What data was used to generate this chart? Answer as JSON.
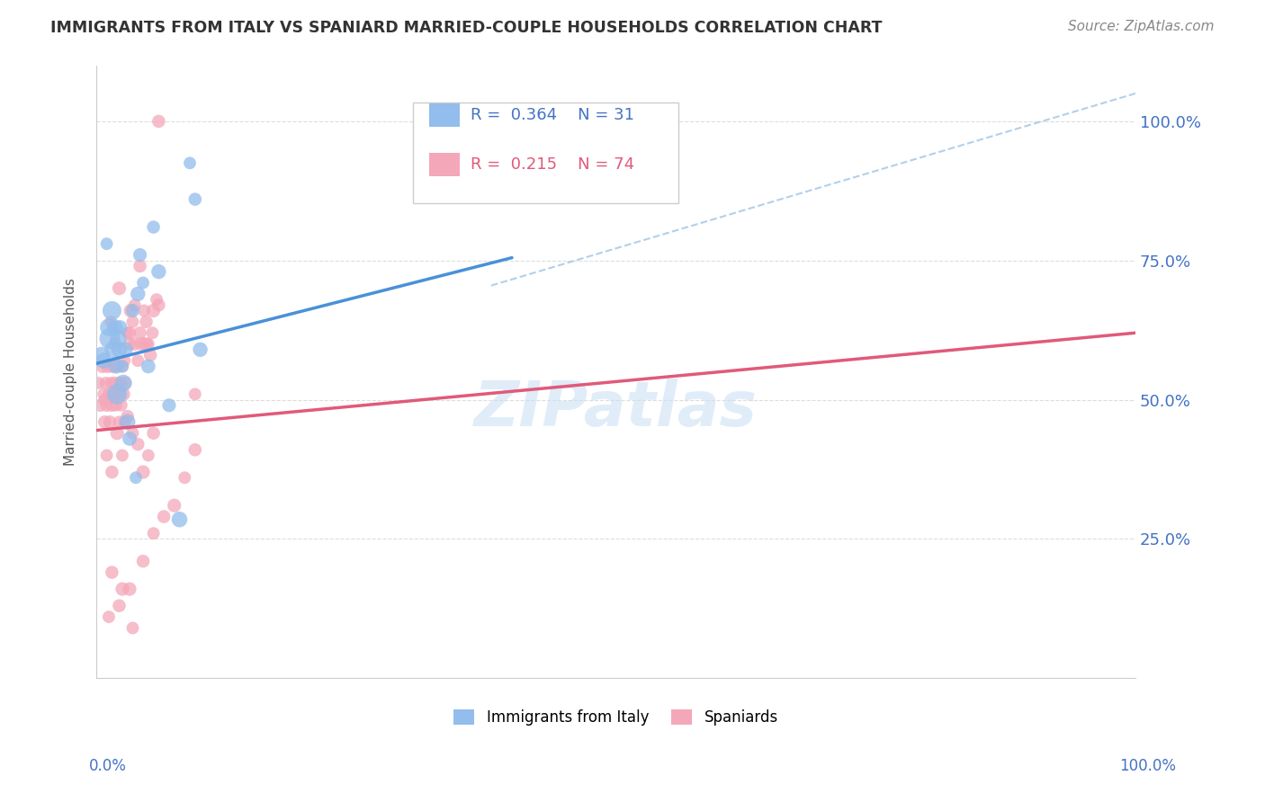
{
  "title": "IMMIGRANTS FROM ITALY VS SPANIARD MARRIED-COUPLE HOUSEHOLDS CORRELATION CHART",
  "source": "Source: ZipAtlas.com",
  "ylabel": "Married-couple Households",
  "legend_italy": "Immigrants from Italy",
  "legend_spaniards": "Spaniards",
  "R_italy": 0.364,
  "N_italy": 31,
  "R_spaniards": 0.215,
  "N_spaniards": 74,
  "ytick_labels": [
    "25.0%",
    "50.0%",
    "75.0%",
    "100.0%"
  ],
  "ytick_values": [
    0.25,
    0.5,
    0.75,
    1.0
  ],
  "color_italy": "#92BDEC",
  "color_spaniards": "#F4A7B9",
  "color_italy_line": "#4A90D9",
  "color_spaniards_line": "#E05A7A",
  "color_dashed": "#AACBE8",
  "watermark": "ZIPatlas",
  "xlim": [
    0.0,
    1.0
  ],
  "ylim": [
    0.0,
    1.1
  ],
  "italy_x": [
    0.005,
    0.007,
    0.01,
    0.012,
    0.013,
    0.015,
    0.016,
    0.018,
    0.019,
    0.02,
    0.021,
    0.022,
    0.023,
    0.025,
    0.026,
    0.028,
    0.03,
    0.032,
    0.035,
    0.038,
    0.04,
    0.042,
    0.045,
    0.05,
    0.055,
    0.06,
    0.07,
    0.08,
    0.09,
    0.095,
    0.1
  ],
  "italy_y": [
    0.58,
    0.57,
    0.78,
    0.63,
    0.61,
    0.66,
    0.59,
    0.63,
    0.56,
    0.51,
    0.61,
    0.59,
    0.63,
    0.56,
    0.53,
    0.59,
    0.46,
    0.43,
    0.66,
    0.36,
    0.69,
    0.76,
    0.71,
    0.56,
    0.81,
    0.73,
    0.49,
    0.285,
    0.925,
    0.86,
    0.59
  ],
  "italy_sizes": [
    180,
    160,
    100,
    200,
    280,
    230,
    180,
    160,
    140,
    260,
    180,
    160,
    130,
    100,
    180,
    140,
    160,
    130,
    120,
    100,
    140,
    120,
    100,
    130,
    110,
    140,
    120,
    160,
    100,
    110,
    140
  ],
  "spaniards_x": [
    0.002,
    0.004,
    0.006,
    0.007,
    0.008,
    0.009,
    0.01,
    0.011,
    0.012,
    0.013,
    0.014,
    0.015,
    0.016,
    0.017,
    0.018,
    0.019,
    0.02,
    0.021,
    0.022,
    0.023,
    0.024,
    0.025,
    0.026,
    0.027,
    0.028,
    0.03,
    0.032,
    0.033,
    0.035,
    0.037,
    0.04,
    0.042,
    0.044,
    0.046,
    0.048,
    0.05,
    0.052,
    0.055,
    0.058,
    0.06,
    0.014,
    0.018,
    0.022,
    0.027,
    0.032,
    0.037,
    0.042,
    0.048,
    0.054,
    0.06,
    0.01,
    0.015,
    0.02,
    0.025,
    0.03,
    0.035,
    0.04,
    0.045,
    0.05,
    0.055,
    0.008,
    0.015,
    0.025,
    0.035,
    0.045,
    0.055,
    0.065,
    0.075,
    0.085,
    0.095,
    0.012,
    0.022,
    0.032,
    0.095
  ],
  "spaniards_y": [
    0.53,
    0.49,
    0.56,
    0.51,
    0.46,
    0.53,
    0.49,
    0.56,
    0.51,
    0.46,
    0.53,
    0.49,
    0.56,
    0.51,
    0.53,
    0.49,
    0.56,
    0.51,
    0.46,
    0.53,
    0.49,
    0.56,
    0.51,
    0.46,
    0.53,
    0.62,
    0.6,
    0.66,
    0.64,
    0.6,
    0.57,
    0.62,
    0.6,
    0.66,
    0.64,
    0.6,
    0.58,
    0.66,
    0.68,
    1.0,
    0.64,
    0.6,
    0.7,
    0.57,
    0.62,
    0.67,
    0.74,
    0.6,
    0.62,
    0.67,
    0.4,
    0.37,
    0.44,
    0.4,
    0.47,
    0.44,
    0.42,
    0.37,
    0.4,
    0.44,
    0.5,
    0.19,
    0.16,
    0.09,
    0.21,
    0.26,
    0.29,
    0.31,
    0.36,
    0.41,
    0.11,
    0.13,
    0.16,
    0.51
  ],
  "spaniards_sizes": [
    100,
    110,
    120,
    100,
    110,
    100,
    110,
    120,
    100,
    110,
    100,
    110,
    120,
    100,
    110,
    100,
    110,
    120,
    100,
    110,
    100,
    110,
    120,
    100,
    110,
    100,
    110,
    120,
    100,
    110,
    100,
    110,
    120,
    100,
    110,
    100,
    110,
    120,
    100,
    110,
    100,
    110,
    120,
    100,
    110,
    100,
    110,
    120,
    100,
    110,
    100,
    110,
    120,
    100,
    110,
    100,
    110,
    120,
    100,
    110,
    100,
    110,
    120,
    100,
    110,
    100,
    110,
    120,
    100,
    110,
    100,
    110,
    120,
    100
  ],
  "italy_line_x0": 0.0,
  "italy_line_x1": 0.4,
  "italy_line_y0": 0.565,
  "italy_line_y1": 0.755,
  "spaniards_line_x0": 0.0,
  "spaniards_line_x1": 1.0,
  "spaniards_line_y0": 0.445,
  "spaniards_line_y1": 0.62,
  "dashed_line_x0": 0.38,
  "dashed_line_x1": 1.0,
  "dashed_line_y0": 0.705,
  "dashed_line_y1": 1.05
}
